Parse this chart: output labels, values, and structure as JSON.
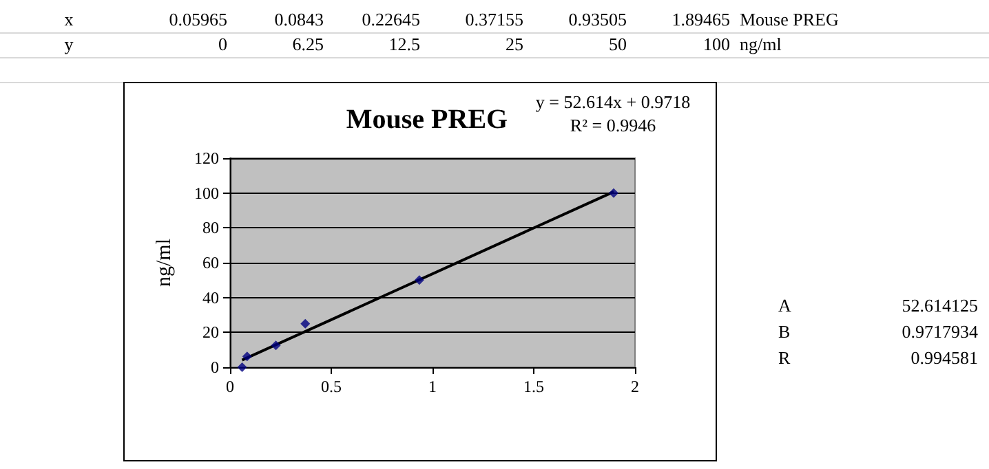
{
  "chart_data": {
    "type": "scatter",
    "title": "Mouse PREG",
    "ylabel": "ng/ml",
    "annotations": [
      "y = 52.614x + 0.9718",
      "R² = 0.9946",
      "x",
      "0.05965",
      "0.0843",
      "0.22645",
      "0.37155",
      "0.93505",
      "1.89465",
      "Mouse PREG",
      "y",
      "0",
      "6.25",
      "12.5",
      "25",
      "50",
      "100",
      "ng/ml",
      "A",
      "52.614125",
      "B",
      "0.9717934",
      "R",
      "0.994581"
    ],
    "series": [
      {
        "color": "#000080",
        "marker": "diamond",
        "x": [
          0.05965,
          0.0843,
          0.22645,
          0.37155,
          0.93505,
          1.89465
        ],
        "values": [
          0,
          6.25,
          12.5,
          25,
          50,
          100
        ]
      },
      {
        "type": "line",
        "color": "#000000",
        "marker": "none",
        "line_style": "solid",
        "x": [
          0.05965,
          1.89465
        ],
        "values": [
          4.1,
          100.7
        ]
      }
    ],
    "xlim": [
      0,
      2
    ],
    "xticks": [
      0,
      0.5,
      1,
      1.5,
      2
    ],
    "ylim": [
      0,
      120
    ],
    "yticks": [
      0,
      20,
      40,
      60,
      80,
      100,
      120
    ],
    "grid": "y"
  }
}
